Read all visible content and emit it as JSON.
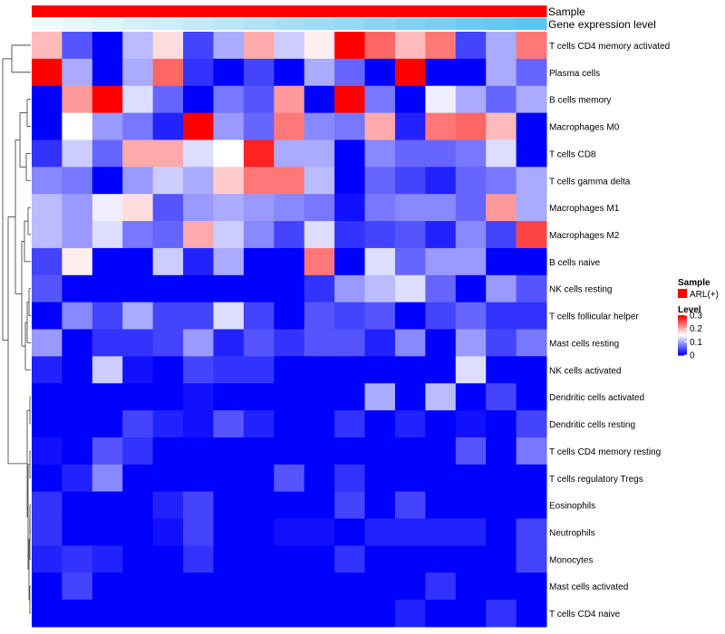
{
  "chart_data": {
    "type": "heatmap",
    "title": "",
    "annotations": {
      "sample_label": "Sample",
      "expression_label": "Gene expression level"
    },
    "legend": {
      "sample_title": "Sample",
      "sample_item": "ARL(+)",
      "sample_color": "#ff0000",
      "level_title": "Level",
      "level_ticks": [
        "0.3",
        "0.2",
        "0.1",
        "0"
      ],
      "level_tick_values": [
        0.3,
        0.2,
        0.1,
        0
      ],
      "range": [
        0,
        0.3
      ]
    },
    "colors": {
      "low": "#0000ff",
      "mid": "#ffffff",
      "high": "#ff0000",
      "expr_low": "#f2fafd",
      "expr_high": "#5bc5ef"
    },
    "rows": [
      "T cells CD4 memory activated",
      "Plasma cells",
      "B cells memory",
      "Macrophages M0",
      "T cells CD8",
      "T cells gamma delta",
      "Macrophages M1",
      "Macrophages M2",
      "B cells naive",
      "NK cells resting",
      "T cells follicular helper",
      "Mast cells resting",
      "NK cells activated",
      "Dendritic cells activated",
      "Dendritic cells resting",
      "T cells CD4 memory resting",
      "T cells regulatory  Tregs",
      "Eosinophils",
      "Neutrophils",
      "Monocytes",
      "Mast cells activated",
      "T cells CD4 naive"
    ],
    "values": [
      [
        0.19,
        0.05,
        0.0,
        0.11,
        0.17,
        0.04,
        0.1,
        0.2,
        0.12,
        0.16,
        0.3,
        0.24,
        0.19,
        0.23,
        0.04,
        0.1,
        0.23
      ],
      [
        0.3,
        0.1,
        0.0,
        0.1,
        0.24,
        0.03,
        0.0,
        0.04,
        0.0,
        0.1,
        0.06,
        0.0,
        0.3,
        0.0,
        0.0,
        0.1,
        0.06
      ],
      [
        0.0,
        0.21,
        0.3,
        0.13,
        0.06,
        0.0,
        0.07,
        0.05,
        0.21,
        0.0,
        0.3,
        0.07,
        0.0,
        0.14,
        0.1,
        0.06,
        0.1
      ],
      [
        0.0,
        0.15,
        0.09,
        0.07,
        0.02,
        0.3,
        0.09,
        0.06,
        0.23,
        0.08,
        0.07,
        0.2,
        0.02,
        0.23,
        0.24,
        0.19,
        0.0
      ],
      [
        0.03,
        0.12,
        0.06,
        0.2,
        0.2,
        0.13,
        0.15,
        0.28,
        0.1,
        0.1,
        0.0,
        0.08,
        0.06,
        0.06,
        0.07,
        0.13,
        0.0
      ],
      [
        0.08,
        0.07,
        0.0,
        0.09,
        0.12,
        0.1,
        0.18,
        0.23,
        0.23,
        0.11,
        0.0,
        0.06,
        0.04,
        0.02,
        0.06,
        0.07,
        0.1
      ],
      [
        0.11,
        0.09,
        0.14,
        0.17,
        0.05,
        0.09,
        0.1,
        0.09,
        0.08,
        0.07,
        0.01,
        0.07,
        0.08,
        0.08,
        0.06,
        0.21,
        0.1
      ],
      [
        0.11,
        0.09,
        0.13,
        0.07,
        0.06,
        0.2,
        0.12,
        0.08,
        0.04,
        0.13,
        0.03,
        0.04,
        0.05,
        0.02,
        0.08,
        0.04,
        0.26
      ],
      [
        0.04,
        0.16,
        0.0,
        0.0,
        0.12,
        0.02,
        0.1,
        0.0,
        0.0,
        0.23,
        0.0,
        0.13,
        0.06,
        0.09,
        0.09,
        0.0,
        0.0
      ],
      [
        0.05,
        0.0,
        0.0,
        0.0,
        0.0,
        0.0,
        0.0,
        0.0,
        0.0,
        0.03,
        0.09,
        0.11,
        0.13,
        0.06,
        0.0,
        0.09,
        0.05
      ],
      [
        0.0,
        0.08,
        0.04,
        0.1,
        0.04,
        0.04,
        0.13,
        0.04,
        0.0,
        0.05,
        0.04,
        0.05,
        0.0,
        0.04,
        0.06,
        0.03,
        0.03
      ],
      [
        0.09,
        0.0,
        0.03,
        0.03,
        0.04,
        0.09,
        0.02,
        0.05,
        0.03,
        0.05,
        0.05,
        0.02,
        0.08,
        0.0,
        0.09,
        0.04,
        0.07
      ],
      [
        0.02,
        0.0,
        0.12,
        0.01,
        0.0,
        0.04,
        0.03,
        0.03,
        0.0,
        0.0,
        0.0,
        0.0,
        0.0,
        0.0,
        0.13,
        0.0,
        0.0
      ],
      [
        0.0,
        0.0,
        0.0,
        0.0,
        0.0,
        0.01,
        0.0,
        0.0,
        0.0,
        0.0,
        0.0,
        0.1,
        0.0,
        0.11,
        0.0,
        0.04,
        0.0
      ],
      [
        0.0,
        0.0,
        0.0,
        0.04,
        0.02,
        0.01,
        0.05,
        0.02,
        0.0,
        0.0,
        0.03,
        0.0,
        0.02,
        0.0,
        0.01,
        0.0,
        0.04
      ],
      [
        0.01,
        0.0,
        0.05,
        0.03,
        0.0,
        0.0,
        0.0,
        0.0,
        0.0,
        0.0,
        0.0,
        0.0,
        0.0,
        0.0,
        0.05,
        0.0,
        0.07
      ],
      [
        0.0,
        0.02,
        0.08,
        0.0,
        0.0,
        0.0,
        0.0,
        0.0,
        0.05,
        0.0,
        0.03,
        0.0,
        0.0,
        0.0,
        0.0,
        0.0,
        0.0
      ],
      [
        0.03,
        0.0,
        0.0,
        0.0,
        0.02,
        0.04,
        0.0,
        0.0,
        0.0,
        0.0,
        0.04,
        0.0,
        0.04,
        0.0,
        0.0,
        0.0,
        0.0
      ],
      [
        0.03,
        0.0,
        0.0,
        0.0,
        0.01,
        0.04,
        0.0,
        0.0,
        0.01,
        0.01,
        0.0,
        0.02,
        0.02,
        0.02,
        0.02,
        0.0,
        0.04
      ],
      [
        0.02,
        0.03,
        0.02,
        0.0,
        0.0,
        0.03,
        0.0,
        0.0,
        0.0,
        0.0,
        0.03,
        0.0,
        0.0,
        0.0,
        0.0,
        0.0,
        0.04
      ],
      [
        0.0,
        0.04,
        0.0,
        0.0,
        0.0,
        0.0,
        0.0,
        0.0,
        0.0,
        0.0,
        0.0,
        0.0,
        0.0,
        0.03,
        0.0,
        0.0,
        0.0
      ],
      [
        0.0,
        0.0,
        0.0,
        0.0,
        0.0,
        0.0,
        0.0,
        0.0,
        0.0,
        0.0,
        0.0,
        0.0,
        0.02,
        0.0,
        0.0,
        0.03,
        0.0
      ]
    ],
    "sample_group": [
      "ARL(+)",
      "ARL(+)",
      "ARL(+)",
      "ARL(+)",
      "ARL(+)",
      "ARL(+)",
      "ARL(+)",
      "ARL(+)",
      "ARL(+)",
      "ARL(+)",
      "ARL(+)",
      "ARL(+)",
      "ARL(+)",
      "ARL(+)",
      "ARL(+)",
      "ARL(+)",
      "ARL(+)"
    ],
    "expression_level": [
      0.0,
      0.06,
      0.12,
      0.19,
      0.25,
      0.31,
      0.38,
      0.44,
      0.5,
      0.56,
      0.63,
      0.69,
      0.75,
      0.81,
      0.88,
      0.94,
      1.0
    ]
  }
}
